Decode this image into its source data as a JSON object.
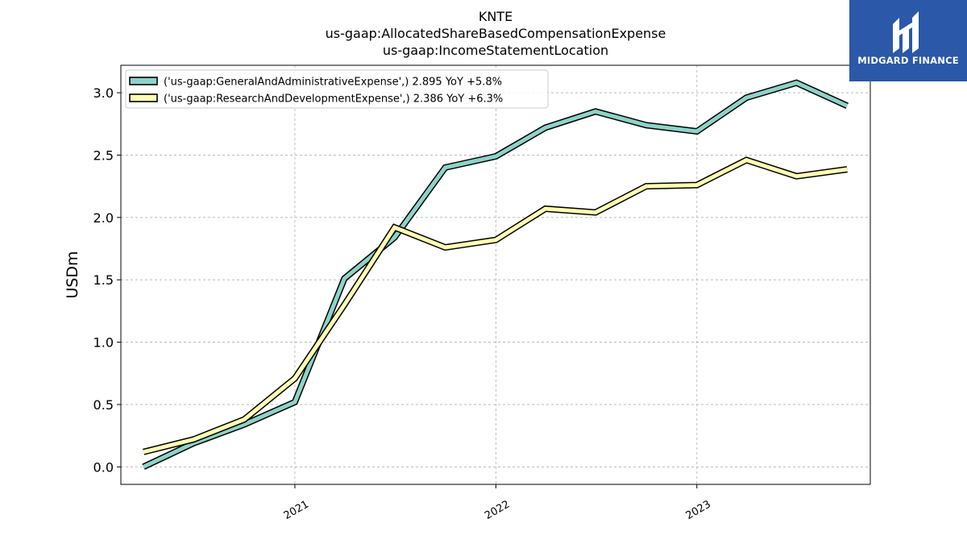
{
  "header": {
    "title": "KNTE",
    "subtitle1": "us-gaap:AllocatedShareBasedCompensationExpense",
    "subtitle2": "us-gaap:IncomeStatementLocation"
  },
  "logo": {
    "text": "MIDGARD FINANCE",
    "icon": "midgard-logo-icon",
    "color": "#2b58a8"
  },
  "chart_data": {
    "type": "line",
    "x": [
      "2020-04-01",
      "2020-07-01",
      "2020-10-01",
      "2021-01-01",
      "2021-04-01",
      "2021-07-01",
      "2021-10-01",
      "2022-01-01",
      "2022-04-01",
      "2022-07-01",
      "2022-10-01",
      "2023-01-01",
      "2023-04-01",
      "2023-07-01",
      "2023-10-01"
    ],
    "series": [
      {
        "name": "('us-gaap:GeneralAndAdministrativeExpense',) 2.895 YoY +5.8%",
        "color": "#8dd3c7",
        "values": [
          0.0,
          0.19,
          0.34,
          0.52,
          1.51,
          1.84,
          2.4,
          2.49,
          2.72,
          2.85,
          2.74,
          2.69,
          2.96,
          3.08,
          2.895
        ]
      },
      {
        "name": "('us-gaap:ResearchAndDevelopmentExpense',) 2.386 YoY +6.3%",
        "color": "#ffffb3",
        "values": [
          0.12,
          0.22,
          0.38,
          0.71,
          1.3,
          1.92,
          1.76,
          1.82,
          2.07,
          2.04,
          2.25,
          2.26,
          2.46,
          2.33,
          2.386
        ]
      }
    ],
    "xticks": [
      "2021",
      "2022",
      "2023"
    ],
    "xtick_dates": [
      "2021-01-01",
      "2022-01-01",
      "2023-01-01"
    ],
    "yticks": [
      "0.0",
      "0.5",
      "1.0",
      "1.5",
      "2.0",
      "2.5",
      "3.0"
    ],
    "ylabel": "USDm",
    "xlabel": "",
    "xlim": [
      "2020-02-20",
      "2023-11-12"
    ],
    "ylim": [
      -0.14,
      3.22
    ],
    "grid": true,
    "legend": "top-left"
  }
}
